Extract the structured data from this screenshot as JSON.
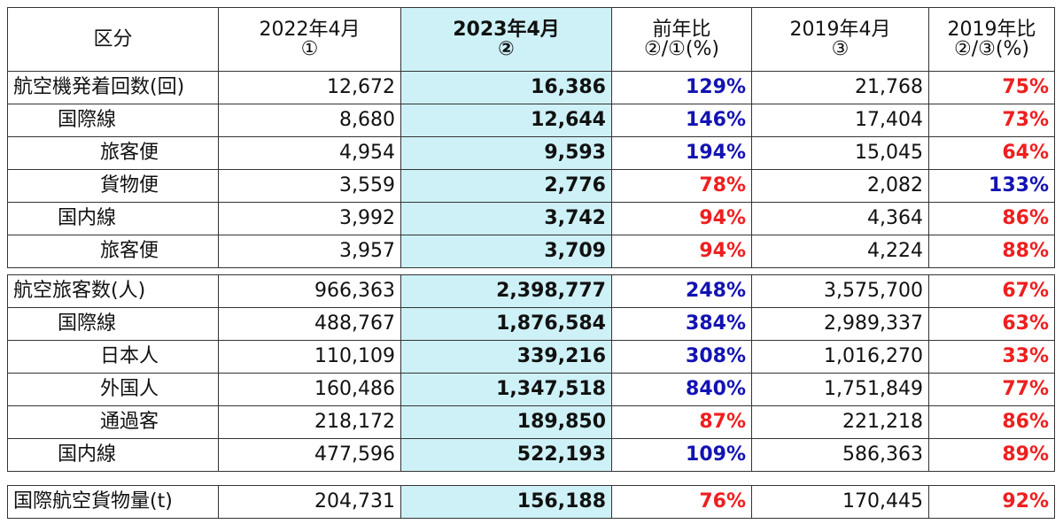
{
  "header": {
    "col0": "区分",
    "col1": [
      "2022年4月",
      "①"
    ],
    "col2": [
      "2023年4月",
      "②"
    ],
    "col3": [
      "前年比",
      "②/①(%)"
    ],
    "col4": [
      "2019年4月",
      "③"
    ],
    "col5": [
      "2019年比",
      "②/③(%)"
    ]
  },
  "sections": [
    {
      "rows": [
        {
          "label": "航空機発着回数(回)",
          "level": 0,
          "v2022": "12,672",
          "v2023": "16,386",
          "yoy": "129%",
          "yoy_color": "blue",
          "v2019": "21,768",
          "vs2019": "75%",
          "vs2019_color": "red"
        },
        {
          "label": "国際線",
          "level": 1,
          "v2022": "8,680",
          "v2023": "12,644",
          "yoy": "146%",
          "yoy_color": "blue",
          "v2019": "17,404",
          "vs2019": "73%",
          "vs2019_color": "red"
        },
        {
          "label": "旅客便",
          "level": 2,
          "v2022": "4,954",
          "v2023": "9,593",
          "yoy": "194%",
          "yoy_color": "blue",
          "v2019": "15,045",
          "vs2019": "64%",
          "vs2019_color": "red"
        },
        {
          "label": "貨物便",
          "level": 2,
          "v2022": "3,559",
          "v2023": "2,776",
          "yoy": "78%",
          "yoy_color": "red",
          "v2019": "2,082",
          "vs2019": "133%",
          "vs2019_color": "blue"
        },
        {
          "label": "国内線",
          "level": 1,
          "v2022": "3,992",
          "v2023": "3,742",
          "yoy": "94%",
          "yoy_color": "red",
          "v2019": "4,364",
          "vs2019": "86%",
          "vs2019_color": "red"
        },
        {
          "label": "旅客便",
          "level": 2,
          "v2022": "3,957",
          "v2023": "3,709",
          "yoy": "94%",
          "yoy_color": "red",
          "v2019": "4,224",
          "vs2019": "88%",
          "vs2019_color": "red"
        }
      ]
    },
    {
      "rows": [
        {
          "label": "航空旅客数(人)",
          "level": 0,
          "v2022": "966,363",
          "v2023": "2,398,777",
          "yoy": "248%",
          "yoy_color": "blue",
          "v2019": "3,575,700",
          "vs2019": "67%",
          "vs2019_color": "red"
        },
        {
          "label": "国際線",
          "level": 1,
          "v2022": "488,767",
          "v2023": "1,876,584",
          "yoy": "384%",
          "yoy_color": "blue",
          "v2019": "2,989,337",
          "vs2019": "63%",
          "vs2019_color": "red"
        },
        {
          "label": "日本人",
          "level": 2,
          "v2022": "110,109",
          "v2023": "339,216",
          "yoy": "308%",
          "yoy_color": "blue",
          "v2019": "1,016,270",
          "vs2019": "33%",
          "vs2019_color": "red"
        },
        {
          "label": "外国人",
          "level": 2,
          "v2022": "160,486",
          "v2023": "1,347,518",
          "yoy": "840%",
          "yoy_color": "blue",
          "v2019": "1,751,849",
          "vs2019": "77%",
          "vs2019_color": "red"
        },
        {
          "label": "通過客",
          "level": 2,
          "v2022": "218,172",
          "v2023": "189,850",
          "yoy": "87%",
          "yoy_color": "red",
          "v2019": "221,218",
          "vs2019": "86%",
          "vs2019_color": "red"
        },
        {
          "label": "国内線",
          "level": 1,
          "v2022": "477,596",
          "v2023": "522,193",
          "yoy": "109%",
          "yoy_color": "blue",
          "v2019": "586,363",
          "vs2019": "89%",
          "vs2019_color": "red"
        }
      ]
    },
    {
      "rows": [
        {
          "label": "国際航空貨物量(t)",
          "level": 0,
          "v2022": "204,731",
          "v2023": "156,188",
          "yoy": "76%",
          "yoy_color": "red",
          "v2019": "170,445",
          "vs2019": "92%",
          "vs2019_color": "red"
        }
      ]
    }
  ],
  "colors": {
    "highlight": "#cdf1f6",
    "blue": "#1313b3",
    "red": "#ee1f1f"
  }
}
